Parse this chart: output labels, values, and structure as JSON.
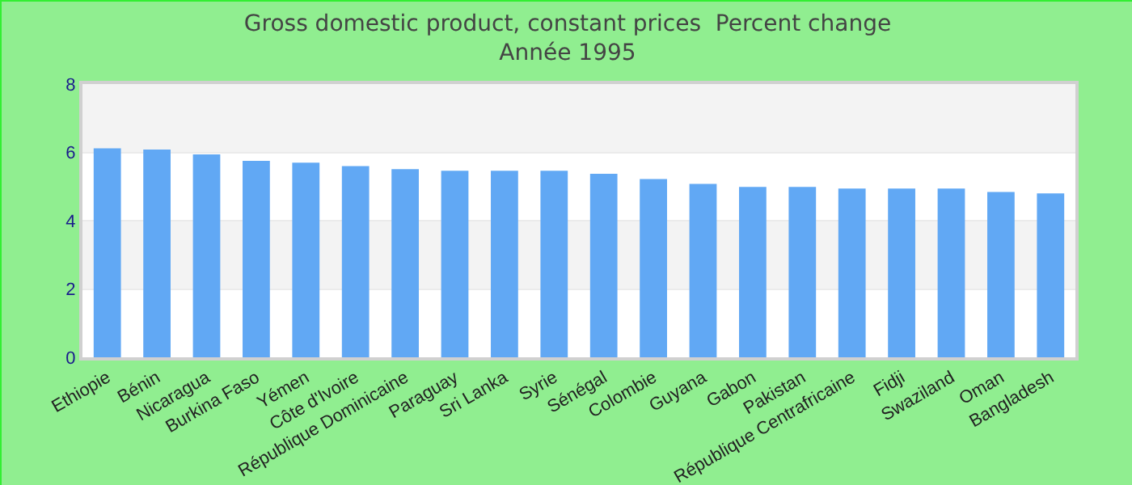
{
  "chart_data": {
    "type": "bar",
    "title": "Gross domestic product, constant prices  Percent change",
    "subtitle": "Année 1995",
    "categories": [
      "Ethiopie",
      "Bénin",
      "Nicaragua",
      "Burkina Faso",
      "Yémen",
      "Côte d'Ivoire",
      "République Dominicaine",
      "Paraguay",
      "Sri Lanka",
      "Syrie",
      "Sénégal",
      "Colombie",
      "Guyana",
      "Gabon",
      "Pakistan",
      "République Centrafricaine",
      "Fidji",
      "Swaziland",
      "Oman",
      "Bangladesh"
    ],
    "values": [
      6.12,
      6.08,
      5.94,
      5.75,
      5.7,
      5.6,
      5.51,
      5.46,
      5.46,
      5.46,
      5.37,
      5.22,
      5.08,
      4.99,
      4.99,
      4.94,
      4.94,
      4.94,
      4.84,
      4.8
    ],
    "color": "#61a8f4",
    "ylim": [
      0,
      8
    ],
    "yticks": [
      0,
      2,
      4,
      6,
      8
    ],
    "grid": true
  }
}
